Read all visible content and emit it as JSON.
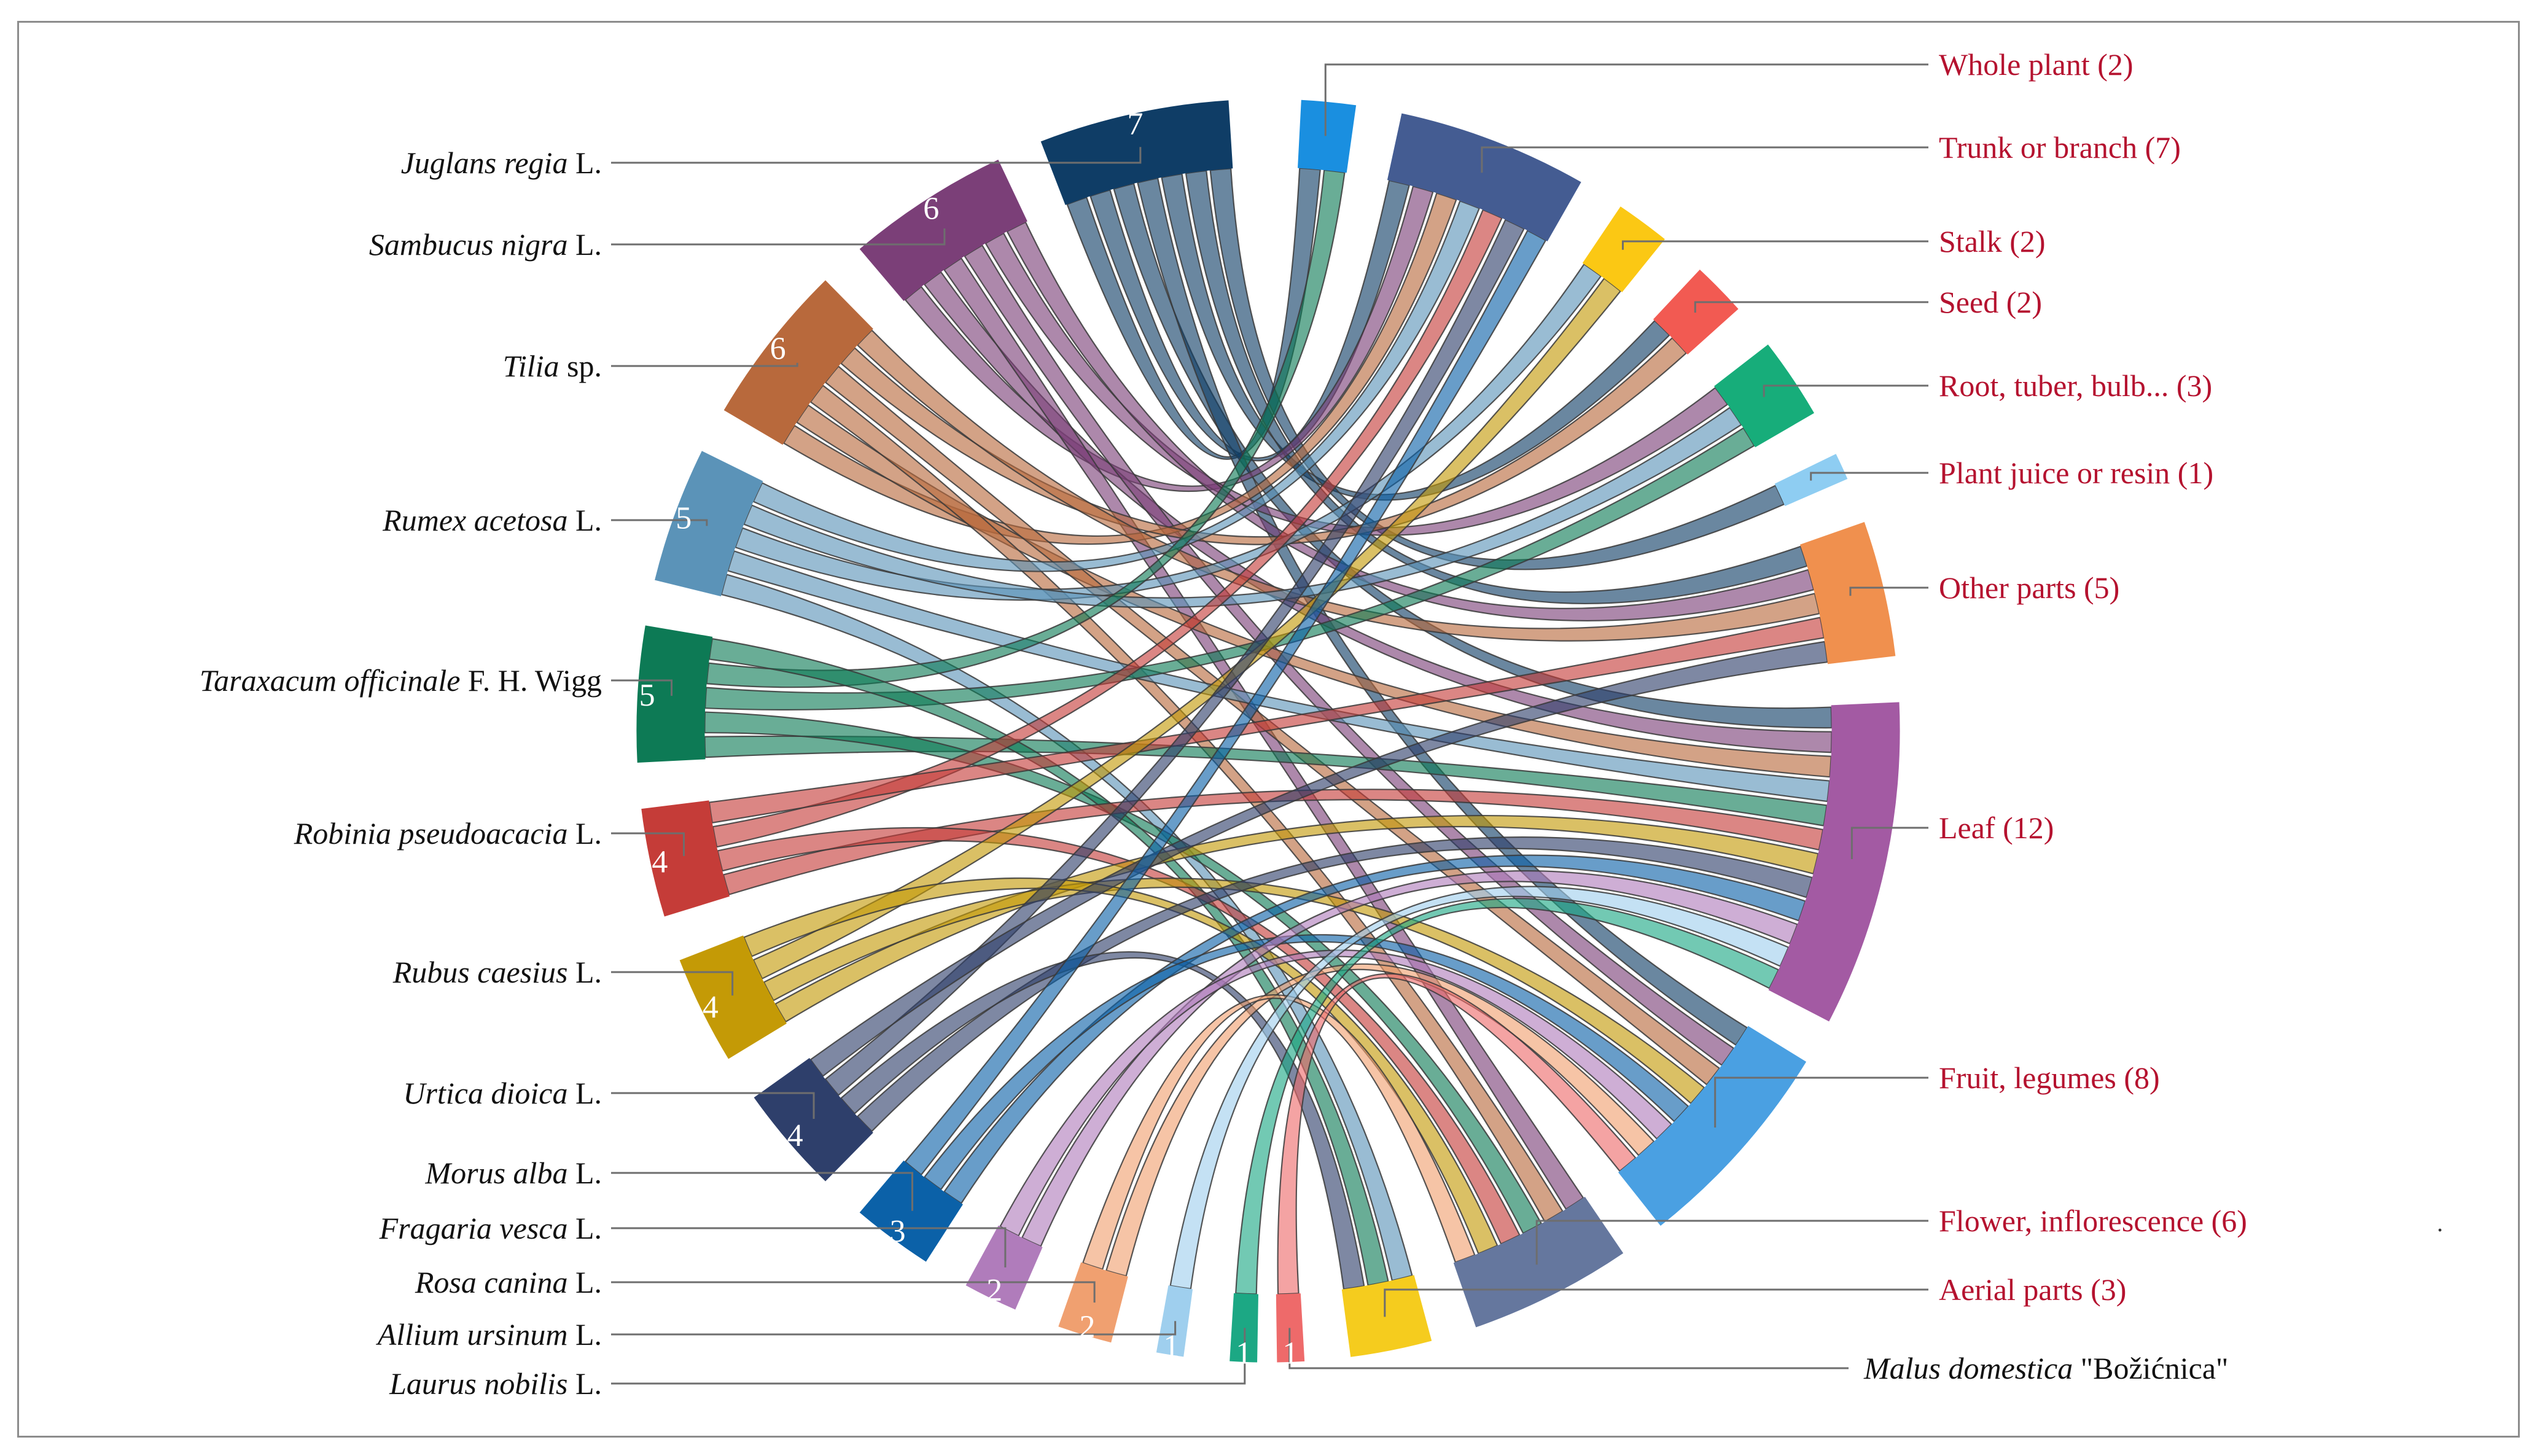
{
  "chart_data": {
    "type": "chord",
    "title": "",
    "plants": [
      {
        "name": "Juglans regia",
        "suffix": " L.",
        "count": 7,
        "color": "#0f3d66"
      },
      {
        "name": "Sambucus nigra",
        "suffix": " L.",
        "count": 6,
        "color": "#7b3f78"
      },
      {
        "name": "Tilia",
        "suffix": " sp.",
        "count": 6,
        "color": "#b8693c"
      },
      {
        "name": "Rumex acetosa",
        "suffix": " L.",
        "count": 5,
        "color": "#5b93b8"
      },
      {
        "name": "Taraxacum officinale",
        "suffix": " F. H. Wigg",
        "count": 5,
        "color": "#0d7a55"
      },
      {
        "name": "Robinia pseudoacacia",
        "suffix": " L.",
        "count": 4,
        "color": "#c53c38"
      },
      {
        "name": "Rubus caesius",
        "suffix": " L.",
        "count": 4,
        "color": "#c49a06"
      },
      {
        "name": "Urtica dioica",
        "suffix": " L.",
        "count": 4,
        "color": "#2e3f6b"
      },
      {
        "name": "Morus alba",
        "suffix": " L.",
        "count": 3,
        "color": "#0b61a8"
      },
      {
        "name": "Fragaria vesca",
        "suffix": " L.",
        "count": 2,
        "color": "#b07cbb"
      },
      {
        "name": "Rosa canina",
        "suffix": " L.",
        "count": 2,
        "color": "#f0a070"
      },
      {
        "name": "Allium ursinum",
        "suffix": " L.",
        "count": 1,
        "color": "#9fcfee"
      },
      {
        "name": "Laurus nobilis",
        "suffix": " L.",
        "count": 1,
        "color": "#1ca884"
      },
      {
        "name": "Malus domestica",
        "suffix": " \"Božićnica\"",
        "count": 1,
        "color": "#ee6a6a"
      }
    ],
    "parts": [
      {
        "name": "Aerial parts",
        "count": 3,
        "color": "#f5cc1e"
      },
      {
        "name": "Flower, inflorescence",
        "count": 6,
        "color": "#65779e"
      },
      {
        "name": "Fruit, legumes",
        "count": 8,
        "color": "#4aa0e2"
      },
      {
        "name": "Leaf",
        "count": 12,
        "color": "#a35aa3"
      },
      {
        "name": "Other parts",
        "count": 5,
        "color": "#f0904e"
      },
      {
        "name": "Plant juice or resin",
        "count": 1,
        "color": "#8ecdf2"
      },
      {
        "name": "Root, tuber, bulb...",
        "count": 3,
        "color": "#17ad7a"
      },
      {
        "name": "Seed",
        "count": 2,
        "color": "#f25a52"
      },
      {
        "name": "Stalk",
        "count": 2,
        "color": "#fbc814"
      },
      {
        "name": "Trunk or branch",
        "count": 7,
        "color": "#445c92"
      },
      {
        "name": "Whole plant",
        "count": 2,
        "color": "#1a8fe0"
      }
    ],
    "links": [
      [
        "Juglans regia",
        "Whole plant"
      ],
      [
        "Juglans regia",
        "Trunk or branch"
      ],
      [
        "Juglans regia",
        "Leaf"
      ],
      [
        "Juglans regia",
        "Fruit, legumes"
      ],
      [
        "Juglans regia",
        "Seed"
      ],
      [
        "Juglans regia",
        "Other parts"
      ],
      [
        "Juglans regia",
        "Plant juice or resin"
      ],
      [
        "Sambucus nigra",
        "Trunk or branch"
      ],
      [
        "Sambucus nigra",
        "Leaf"
      ],
      [
        "Sambucus nigra",
        "Flower, inflorescence"
      ],
      [
        "Sambucus nigra",
        "Fruit, legumes"
      ],
      [
        "Sambucus nigra",
        "Root, tuber, bulb..."
      ],
      [
        "Sambucus nigra",
        "Other parts"
      ],
      [
        "Tilia",
        "Trunk or branch"
      ],
      [
        "Tilia",
        "Leaf"
      ],
      [
        "Tilia",
        "Flower, inflorescence"
      ],
      [
        "Tilia",
        "Fruit, legumes"
      ],
      [
        "Tilia",
        "Seed"
      ],
      [
        "Tilia",
        "Other parts"
      ],
      [
        "Rumex acetosa",
        "Aerial parts"
      ],
      [
        "Rumex acetosa",
        "Leaf"
      ],
      [
        "Rumex acetosa",
        "Stalk"
      ],
      [
        "Rumex acetosa",
        "Root, tuber, bulb..."
      ],
      [
        "Rumex acetosa",
        "Trunk or branch"
      ],
      [
        "Taraxacum officinale",
        "Leaf"
      ],
      [
        "Taraxacum officinale",
        "Flower, inflorescence"
      ],
      [
        "Taraxacum officinale",
        "Root, tuber, bulb..."
      ],
      [
        "Taraxacum officinale",
        "Whole plant"
      ],
      [
        "Taraxacum officinale",
        "Aerial parts"
      ],
      [
        "Robinia pseudoacacia",
        "Leaf"
      ],
      [
        "Robinia pseudoacacia",
        "Flower, inflorescence"
      ],
      [
        "Robinia pseudoacacia",
        "Trunk or branch"
      ],
      [
        "Robinia pseudoacacia",
        "Other parts"
      ],
      [
        "Rubus caesius",
        "Leaf"
      ],
      [
        "Rubus caesius",
        "Fruit, legumes"
      ],
      [
        "Rubus caesius",
        "Stalk"
      ],
      [
        "Rubus caesius",
        "Flower, inflorescence"
      ],
      [
        "Urtica dioica",
        "Leaf"
      ],
      [
        "Urtica dioica",
        "Aerial parts"
      ],
      [
        "Urtica dioica",
        "Trunk or branch"
      ],
      [
        "Urtica dioica",
        "Other parts"
      ],
      [
        "Morus alba",
        "Leaf"
      ],
      [
        "Morus alba",
        "Fruit, legumes"
      ],
      [
        "Morus alba",
        "Trunk or branch"
      ],
      [
        "Fragaria vesca",
        "Leaf"
      ],
      [
        "Fragaria vesca",
        "Fruit, legumes"
      ],
      [
        "Rosa canina",
        "Fruit, legumes"
      ],
      [
        "Rosa canina",
        "Flower, inflorescence"
      ],
      [
        "Allium ursinum",
        "Leaf"
      ],
      [
        "Laurus nobilis",
        "Leaf"
      ],
      [
        "Malus domestica",
        "Fruit, legumes"
      ]
    ]
  },
  "part_labels": {
    "whole_plant": "Whole plant (2)",
    "trunk_or_branch": "Trunk or branch (7)",
    "stalk": "Stalk (2)",
    "seed": "Seed (2)",
    "root": "Root, tuber, bulb... (3)",
    "plant_juice": "Plant juice or resin (1)",
    "other_parts": "Other parts (5)",
    "leaf": "Leaf (12)",
    "fruit": "Fruit, legumes (8)",
    "flower": "Flower, inflorescence (6)",
    "aerial": "Aerial parts (3)"
  },
  "stray_mark": "."
}
